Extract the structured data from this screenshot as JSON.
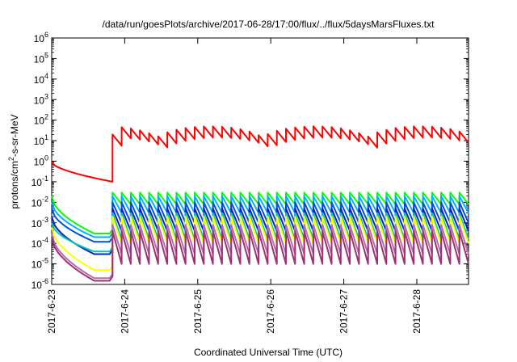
{
  "chart_data": {
    "type": "line",
    "title": "/data/run/goesPlots/archive/2017-06-28/17:00/flux/../flux/5daysMarsFluxes.txt",
    "xlabel": "Coordinated Universal Time (UTC)",
    "ylabel_main": "protons/cm",
    "ylabel_sup": "2",
    "ylabel_rest": "-s-sr-MeV",
    "ylim": [
      1e-06,
      1000000.0
    ],
    "yscale": "log",
    "xlim": [
      "2017-06-23 00:00",
      "2017-06-28 17:00"
    ],
    "y_ticks": [
      {
        "base": "10",
        "exp": "-6",
        "value": 1e-06
      },
      {
        "base": "10",
        "exp": "-5",
        "value": 1e-05
      },
      {
        "base": "10",
        "exp": "-4",
        "value": 0.0001
      },
      {
        "base": "10",
        "exp": "-3",
        "value": 0.001
      },
      {
        "base": "10",
        "exp": "-2",
        "value": 0.01
      },
      {
        "base": "10",
        "exp": "-1",
        "value": 0.1
      },
      {
        "base": "10",
        "exp": "0",
        "value": 1
      },
      {
        "base": "10",
        "exp": "1",
        "value": 10
      },
      {
        "base": "10",
        "exp": "2",
        "value": 100
      },
      {
        "base": "10",
        "exp": "3",
        "value": 1000
      },
      {
        "base": "10",
        "exp": "4",
        "value": 10000
      },
      {
        "base": "10",
        "exp": "5",
        "value": 100000
      },
      {
        "base": "10",
        "exp": "6",
        "value": 1000000
      }
    ],
    "x_ticks": [
      {
        "label": "2017-6-23",
        "value": 0
      },
      {
        "label": "2017-6-24",
        "value": 24
      },
      {
        "label": "2017-6-25",
        "value": 48
      },
      {
        "label": "2017-6-26",
        "value": 72
      },
      {
        "label": "2017-6-27",
        "value": 96
      },
      {
        "label": "2017-6-28",
        "value": 120
      }
    ],
    "series_colors": [
      "#ff0000",
      "#00ff00",
      "#00b0ff",
      "#0050e0",
      "#1020c0",
      "#00c8b4",
      "#ffff00",
      "#b06fb0",
      "#a03070"
    ],
    "description_of_series": "Nine proton flux channels (log scale). Sawtooth pattern with period of about 3 hours.",
    "series": [
      {
        "color": "#ff0000",
        "base_pre": [
          0.9,
          0.1
        ],
        "pre_end": 0.1,
        "jump_at": 20,
        "post_low": 10,
        "post_high": 50
      },
      {
        "color": "#00ff00",
        "pre_start": 0.02,
        "pre_end": 0.0003,
        "post_low": 0.008,
        "post_high": 0.03
      },
      {
        "color": "#00b0ff",
        "pre_start": 0.01,
        "pre_end": 0.0002,
        "post_low": 0.003,
        "post_high": 0.02
      },
      {
        "color": "#0050e0",
        "pre_start": 0.005,
        "pre_end": 0.00012,
        "post_low": 0.001,
        "post_high": 0.01
      },
      {
        "color": "#1020c0",
        "pre_start": 0.002,
        "pre_end": 3e-05,
        "post_low": 0.0004,
        "post_high": 0.005
      },
      {
        "color": "#00c8b4",
        "pre_start": 0.001,
        "pre_end": 4e-05,
        "post_low": 0.00015,
        "post_high": 0.003
      },
      {
        "color": "#ffff00",
        "pre_start": 0.0006,
        "pre_end": 5e-06,
        "post_low": 0.0001,
        "post_high": 0.002
      },
      {
        "color": "#b06fb0",
        "pre_start": 0.0003,
        "pre_end": 2e-06,
        "post_low": 3e-05,
        "post_high": 0.0008
      },
      {
        "color": "#a03070",
        "pre_start": 0.0002,
        "pre_end": 1.5e-06,
        "post_low": 1e-05,
        "post_high": 0.0004
      }
    ]
  }
}
